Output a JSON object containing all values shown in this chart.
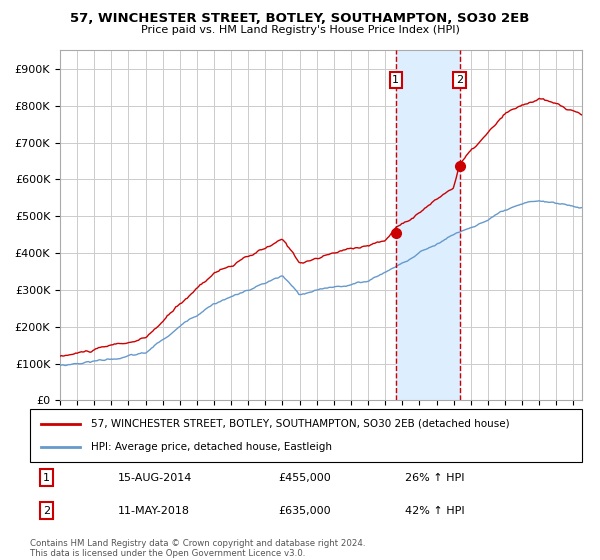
{
  "title": "57, WINCHESTER STREET, BOTLEY, SOUTHAMPTON, SO30 2EB",
  "subtitle": "Price paid vs. HM Land Registry's House Price Index (HPI)",
  "legend_line1": "57, WINCHESTER STREET, BOTLEY, SOUTHAMPTON, SO30 2EB (detached house)",
  "legend_line2": "HPI: Average price, detached house, Eastleigh",
  "annotation1_label": "1",
  "annotation1_date": "15-AUG-2014",
  "annotation1_price": "£455,000",
  "annotation1_hpi": "26% ↑ HPI",
  "annotation2_label": "2",
  "annotation2_date": "11-MAY-2018",
  "annotation2_price": "£635,000",
  "annotation2_hpi": "42% ↑ HPI",
  "footnote": "Contains HM Land Registry data © Crown copyright and database right 2024.\nThis data is licensed under the Open Government Licence v3.0.",
  "red_color": "#cc0000",
  "blue_color": "#6699cc",
  "background_color": "#ffffff",
  "grid_color": "#cccccc",
  "shade_color": "#ddeeff",
  "annotation_box_color": "#cc0000",
  "ylim": [
    0,
    950000
  ],
  "yticks": [
    0,
    100000,
    200000,
    300000,
    400000,
    500000,
    600000,
    700000,
    800000,
    900000
  ],
  "ytick_labels": [
    "£0",
    "£100K",
    "£200K",
    "£300K",
    "£400K",
    "£500K",
    "£600K",
    "£700K",
    "£800K",
    "£900K"
  ],
  "sale1_x": 2014.62,
  "sale1_y": 455000,
  "sale2_x": 2018.36,
  "sale2_y": 635000,
  "xmin": 1995,
  "xmax": 2025.5
}
